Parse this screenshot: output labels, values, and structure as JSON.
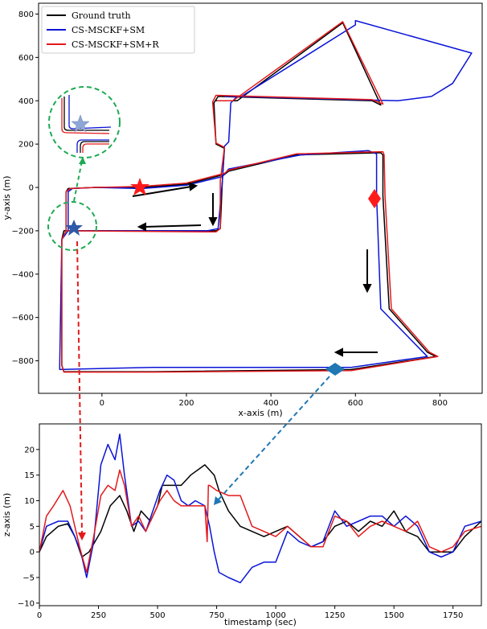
{
  "chart_data": [
    {
      "type": "line",
      "xlabel": "x-axis (m)",
      "ylabel": "y-axis (m)",
      "xlim": [
        -150,
        900
      ],
      "ylim": [
        -950,
        850
      ],
      "xticks": [
        0,
        200,
        400,
        600,
        800
      ],
      "yticks": [
        -800,
        -600,
        -400,
        -200,
        0,
        200,
        400,
        600,
        800
      ],
      "grid": false,
      "legend": "top-left",
      "series": [
        {
          "name": "Ground truth",
          "color": "#000000",
          "x": [
            -85,
            -85,
            -80,
            -15,
            95,
            200,
            290,
            300,
            460,
            660,
            665,
            665,
            680,
            770,
            790,
            590,
            120,
            -90,
            -95,
            -95,
            -90,
            270,
            280,
            285,
            290,
            270,
            265,
            275,
            640,
            660,
            570,
            570,
            320,
            270
          ],
          "y": [
            -200,
            -20,
            -5,
            0,
            0,
            15,
            60,
            75,
            150,
            160,
            150,
            -40,
            -560,
            -760,
            -780,
            -840,
            -850,
            -850,
            -820,
            -240,
            -200,
            -200,
            -190,
            30,
            180,
            200,
            390,
            420,
            400,
            380,
            760,
            760,
            400,
            400
          ]
        },
        {
          "name": "CS-MSCKF+SM",
          "color": "#0a14d6",
          "x": [
            -80,
            -80,
            -70,
            -15,
            95,
            200,
            285,
            300,
            470,
            630,
            650,
            650,
            660,
            760,
            770,
            590,
            120,
            -100,
            -100,
            -95,
            -80,
            250,
            275,
            285,
            290,
            300,
            305,
            320,
            700,
            780,
            830,
            875,
            600,
            600,
            330,
            290
          ],
          "y": [
            -200,
            -20,
            -5,
            0,
            -5,
            10,
            50,
            85,
            150,
            170,
            155,
            -40,
            -560,
            -760,
            -780,
            -830,
            -830,
            -840,
            -820,
            -240,
            -200,
            -200,
            -190,
            30,
            190,
            210,
            390,
            420,
            400,
            420,
            480,
            620,
            770,
            750,
            420,
            420
          ]
        },
        {
          "name": "CS-MSCKF+SM+R",
          "color": "#e31a1c",
          "x": [
            -85,
            -85,
            -75,
            -15,
            95,
            200,
            290,
            300,
            460,
            665,
            668,
            670,
            685,
            775,
            795,
            590,
            120,
            -90,
            -95,
            -95,
            -85,
            270,
            280,
            280,
            290,
            270,
            262,
            270,
            640,
            665,
            570,
            570,
            310,
            272
          ],
          "y": [
            -200,
            -20,
            -5,
            0,
            5,
            20,
            65,
            80,
            155,
            165,
            150,
            -40,
            -560,
            -760,
            -780,
            -845,
            -852,
            -852,
            -822,
            -240,
            -200,
            -205,
            -190,
            30,
            185,
            205,
            395,
            425,
            405,
            385,
            765,
            765,
            400,
            400
          ]
        }
      ]
    },
    {
      "type": "line",
      "xlabel": "timestamp (sec)",
      "ylabel": "z-axis (m)",
      "xlim": [
        0,
        1870
      ],
      "ylim": [
        -10.5,
        25
      ],
      "xticks": [
        0,
        250,
        500,
        750,
        1000,
        1250,
        1500,
        1750
      ],
      "yticks": [
        -10,
        -5,
        0,
        5,
        10,
        15,
        20
      ],
      "grid": false,
      "series": [
        {
          "name": "Ground truth",
          "color": "#000000",
          "x": [
            0,
            30,
            80,
            120,
            150,
            180,
            210,
            260,
            300,
            340,
            370,
            400,
            430,
            470,
            500,
            520,
            550,
            600,
            640,
            700,
            740,
            760,
            800,
            850,
            900,
            950,
            1000,
            1050,
            1100,
            1150,
            1200,
            1250,
            1300,
            1350,
            1400,
            1450,
            1500,
            1550,
            1600,
            1650,
            1700,
            1750,
            1800,
            1870
          ],
          "y": [
            0,
            3,
            5,
            5.5,
            3,
            -1,
            0,
            4,
            9,
            11,
            8,
            4,
            8,
            6,
            9,
            13,
            13,
            13,
            15,
            17,
            15,
            12,
            8,
            5,
            4,
            3,
            4,
            5,
            3,
            1,
            2,
            5,
            6,
            4,
            6,
            5,
            8,
            4,
            3,
            0,
            0,
            0,
            3,
            6
          ]
        },
        {
          "name": "CS-MSCKF+SM",
          "color": "#0a14d6",
          "x": [
            0,
            30,
            80,
            120,
            150,
            175,
            200,
            230,
            260,
            290,
            320,
            340,
            360,
            390,
            420,
            450,
            480,
            510,
            540,
            570,
            600,
            630,
            660,
            700,
            720,
            740,
            760,
            800,
            850,
            900,
            950,
            1000,
            1050,
            1100,
            1150,
            1200,
            1250,
            1300,
            1350,
            1400,
            1450,
            1500,
            1550,
            1600,
            1650,
            1700,
            1750,
            1800,
            1870
          ],
          "y": [
            0,
            5,
            6,
            6,
            3,
            0,
            -5,
            2,
            17,
            21,
            18,
            23,
            15,
            5,
            6,
            4,
            8,
            12,
            15,
            14,
            10,
            9,
            10,
            9,
            5,
            0,
            -4,
            -5,
            -6,
            -3,
            -2,
            -2,
            4,
            2,
            1,
            2,
            8,
            5,
            6,
            7,
            7,
            5,
            7,
            5,
            0,
            -1,
            0,
            5,
            6
          ]
        },
        {
          "name": "CS-MSCKF+SM+R",
          "color": "#e31a1c",
          "x": [
            0,
            30,
            60,
            100,
            130,
            170,
            200,
            230,
            260,
            290,
            320,
            340,
            360,
            390,
            420,
            450,
            480,
            510,
            540,
            570,
            600,
            640,
            700,
            710,
            715,
            720,
            750,
            800,
            850,
            900,
            950,
            1000,
            1050,
            1100,
            1150,
            1200,
            1250,
            1300,
            1350,
            1400,
            1450,
            1500,
            1550,
            1600,
            1650,
            1700,
            1750,
            1800,
            1870
          ],
          "y": [
            0,
            7,
            9,
            12,
            9,
            1,
            -4,
            3,
            11,
            13,
            12,
            16,
            13,
            5,
            7,
            4,
            7,
            10,
            12,
            10,
            9,
            9,
            9,
            2,
            13,
            13,
            12,
            11,
            11,
            5,
            4,
            3,
            5,
            3,
            1,
            1,
            7,
            6,
            3,
            5,
            6,
            5,
            4,
            6,
            1,
            0,
            1,
            4,
            5
          ]
        }
      ]
    }
  ],
  "figure": {
    "markers": [
      {
        "kind": "star",
        "color": "#ff1a1a",
        "x": 95,
        "y": 5
      },
      {
        "kind": "star",
        "color": "#2e5aa8",
        "x": -60,
        "y": -185
      },
      {
        "kind": "diamond",
        "color": "#ff1a1a",
        "x": 665,
        "y": -45
      },
      {
        "kind": "diamond",
        "color": "#1f77b4",
        "x": 565,
        "y": -840
      }
    ]
  }
}
